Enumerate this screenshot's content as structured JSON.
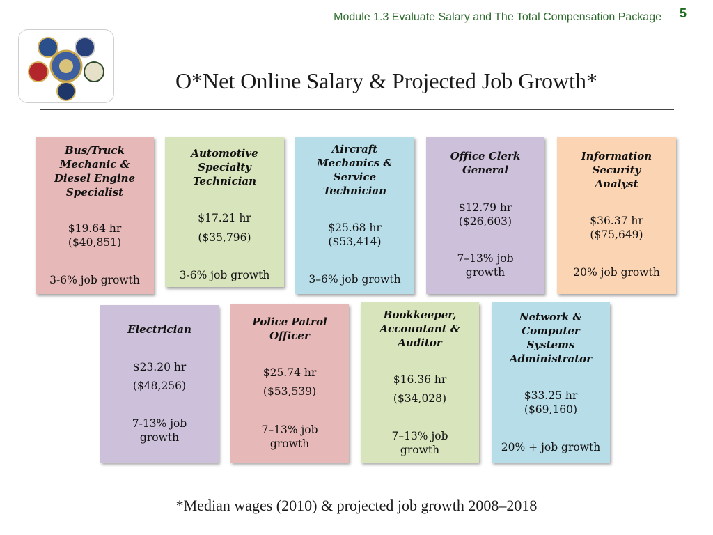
{
  "header": {
    "module": "Module 1.3 Evaluate Salary and The Total Compensation Package",
    "page_number": "5"
  },
  "title": "O*Net Online Salary & Projected Job Growth*",
  "cards": [
    {
      "title": [
        "Bus/Truck",
        "Mechanic &",
        "Diesel Engine",
        "Specialist"
      ],
      "hourly": "$19.64 hr",
      "annual": "($40,851)",
      "growth": [
        "3-6% job growth"
      ],
      "color": "#e6b8b7"
    },
    {
      "title": [
        "Automotive",
        "Specialty",
        "Technician"
      ],
      "hourly": "$17.21 hr",
      "annual": "($35,796)",
      "growth": [
        "3-6% job growth"
      ],
      "color": "#d8e4bc"
    },
    {
      "title": [
        "Aircraft",
        "Mechanics &",
        "Service",
        "Technician"
      ],
      "hourly": "$25.68 hr",
      "annual": "($53,414)",
      "growth": [
        "3–6% job growth"
      ],
      "color": "#b7dde8"
    },
    {
      "title": [
        "Office Clerk",
        "General"
      ],
      "hourly": "$12.79 hr",
      "annual": "($26,603)",
      "growth": [
        "7–13% job",
        "growth"
      ],
      "color": "#ccc0da"
    },
    {
      "title": [
        "Information",
        "Security",
        "Analyst"
      ],
      "hourly": "$36.37 hr",
      "annual": "($75,649)",
      "growth": [
        "20% job growth"
      ],
      "color": "#fbd4b4"
    },
    {
      "title": [
        "Electrician"
      ],
      "hourly": "$23.20 hr",
      "annual": "($48,256)",
      "growth": [
        "7-13% job",
        "growth"
      ],
      "color": "#ccc0da"
    },
    {
      "title": [
        "Police Patrol",
        "Officer"
      ],
      "hourly": "$25.74 hr",
      "annual": "($53,539)",
      "growth": [
        "7–13% job",
        "growth"
      ],
      "color": "#e6b8b7"
    },
    {
      "title": [
        "Bookkeeper,",
        "Accountant &",
        "Auditor"
      ],
      "hourly": "$16.36 hr",
      "annual": "($34,028)",
      "growth": [
        "7–13% job",
        "growth"
      ],
      "color": "#d8e4bc"
    },
    {
      "title": [
        "Network &",
        "Computer",
        "Systems",
        "Administrator"
      ],
      "hourly": "$33.25 hr",
      "annual": "($69,160)",
      "growth": [
        "20% + job growth"
      ],
      "color": "#b7dde8"
    }
  ],
  "footnote": "*Median wages (2010) & projected job growth 2008–2018"
}
